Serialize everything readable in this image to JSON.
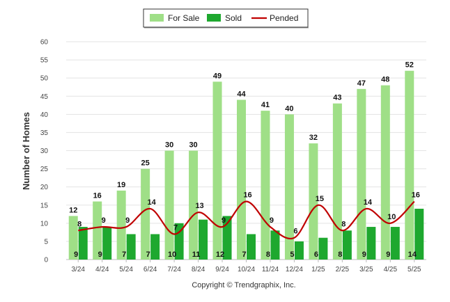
{
  "chart_data": {
    "type": "bar",
    "categories": [
      "3/24",
      "4/24",
      "5/24",
      "6/24",
      "7/24",
      "8/24",
      "9/24",
      "10/24",
      "11/24",
      "12/24",
      "1/25",
      "2/25",
      "3/25",
      "4/25",
      "5/25"
    ],
    "series": [
      {
        "name": "For Sale",
        "kind": "bar",
        "color": "#9fdf87",
        "values": [
          12,
          16,
          19,
          25,
          30,
          30,
          49,
          44,
          41,
          40,
          32,
          43,
          47,
          48,
          52
        ]
      },
      {
        "name": "Sold",
        "kind": "bar",
        "color": "#1ea82f",
        "values": [
          9,
          9,
          7,
          7,
          10,
          11,
          12,
          7,
          8,
          5,
          6,
          8,
          9,
          9,
          14
        ]
      },
      {
        "name": "Pended",
        "kind": "line",
        "color": "#c00000",
        "values": [
          8,
          9,
          9,
          14,
          7,
          13,
          9,
          16,
          9,
          6,
          15,
          8,
          14,
          10,
          16
        ]
      }
    ],
    "xlabel": "",
    "ylabel": "Number of Homes",
    "ylim": [
      0,
      60
    ],
    "yticks": [
      0,
      5,
      10,
      15,
      20,
      25,
      30,
      35,
      40,
      45,
      50,
      55,
      60
    ],
    "grid": true,
    "legend_position": "top-center"
  },
  "copyright": "Copyright © Trendgraphix, Inc."
}
